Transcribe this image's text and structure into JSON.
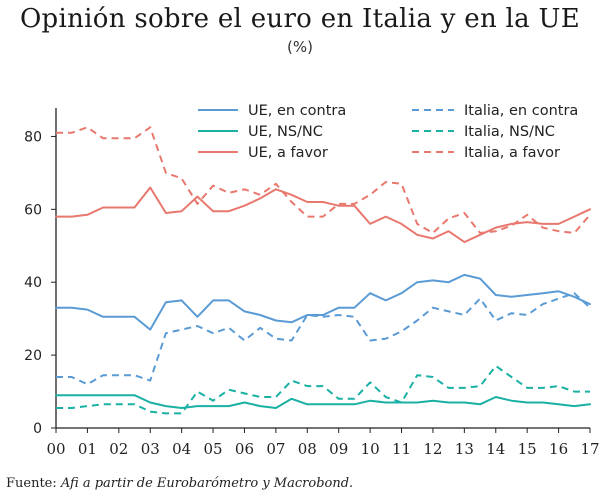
{
  "title": "Opinión sobre el euro en Italia y en la UE",
  "subtitle": "(%)",
  "source": {
    "prefix": "Fuente: ",
    "text": "Afi a partir de Eurobarómetro y Macrobond."
  },
  "chart_data": {
    "type": "line",
    "ylim": [
      0,
      90
    ],
    "yticks": [
      0,
      20,
      40,
      60,
      80
    ],
    "xlim": [
      0,
      17
    ],
    "xtick_labels": [
      "00",
      "01",
      "02",
      "03",
      "04",
      "05",
      "06",
      "07",
      "08",
      "09",
      "10",
      "11",
      "12",
      "13",
      "14",
      "15",
      "16",
      "17"
    ],
    "grid": false,
    "legend_placement": "top-right",
    "series": [
      {
        "name": "UE, en contra",
        "color": "#5b9bd5",
        "dash": "solid",
        "x": [
          0,
          0.5,
          1,
          1.5,
          2,
          2.5,
          3,
          3.5,
          4,
          4.5,
          5,
          5.5,
          6,
          6.5,
          7,
          7.5,
          8,
          8.5,
          9,
          9.5,
          10,
          10.5,
          11,
          11.5,
          12,
          12.5,
          13,
          13.5,
          14,
          14.5,
          15,
          15.5,
          16,
          16.5,
          17
        ],
        "y": [
          33,
          33,
          32.5,
          30.5,
          30.5,
          30.5,
          27,
          34.5,
          35,
          30.5,
          35,
          35,
          32,
          31,
          29.5,
          29,
          31,
          31,
          33,
          33,
          37,
          35,
          37,
          40,
          40.5,
          40,
          42,
          41,
          36.5,
          36,
          36.5,
          37,
          37.5,
          36,
          34
        ]
      },
      {
        "name": "UE, NS/NC",
        "color": "#1ab0a4",
        "dash": "solid",
        "x": [
          0,
          0.5,
          1,
          1.5,
          2,
          2.5,
          3,
          3.5,
          4,
          4.5,
          5,
          5.5,
          6,
          6.5,
          7,
          7.5,
          8,
          8.5,
          9,
          9.5,
          10,
          10.5,
          11,
          11.5,
          12,
          12.5,
          13,
          13.5,
          14,
          14.5,
          15,
          15.5,
          16,
          16.5,
          17
        ],
        "y": [
          9,
          9,
          9,
          9,
          9,
          9,
          7,
          6,
          5.5,
          6,
          6,
          6,
          7,
          6,
          5.5,
          8,
          6.5,
          6.5,
          6.5,
          6.5,
          7.5,
          7,
          7,
          7,
          7.5,
          7,
          7,
          6.5,
          8.5,
          7.5,
          7,
          7,
          6.5,
          6,
          6.5
        ]
      },
      {
        "name": "UE, a favor",
        "color": "#e8786e",
        "dash": "solid",
        "x": [
          0,
          0.5,
          1,
          1.5,
          2,
          2.5,
          3,
          3.5,
          4,
          4.5,
          5,
          5.5,
          6,
          6.5,
          7,
          7.5,
          8,
          8.5,
          9,
          9.5,
          10,
          10.5,
          11,
          11.5,
          12,
          12.5,
          13,
          13.5,
          14,
          14.5,
          15,
          15.5,
          16,
          16.5,
          17
        ],
        "y": [
          58,
          58,
          58.5,
          60.5,
          60.5,
          60.5,
          66,
          59,
          59.5,
          63.5,
          59.5,
          59.5,
          61,
          63,
          65.5,
          64,
          62,
          62,
          61,
          61,
          56,
          58,
          56,
          53,
          52,
          54,
          51,
          53,
          55,
          56,
          56.5,
          56,
          56,
          58,
          60
        ]
      },
      {
        "name": "Italia, en contra",
        "color": "#5b9bd5",
        "dash": "dashed",
        "x": [
          0,
          0.5,
          1,
          1.5,
          2,
          2.5,
          3,
          3.5,
          4,
          4.5,
          5,
          5.5,
          6,
          6.5,
          7,
          7.5,
          8,
          8.5,
          9,
          9.5,
          10,
          10.5,
          11,
          11.5,
          12,
          12.5,
          13,
          13.5,
          14,
          14.5,
          15,
          15.5,
          16,
          16.5,
          17
        ],
        "y": [
          14,
          14,
          12,
          14.5,
          14.5,
          14.5,
          13,
          26,
          27,
          28,
          26,
          27.5,
          24,
          27.5,
          24.5,
          24,
          31,
          30.5,
          31,
          30.5,
          24,
          24.5,
          26.5,
          29.5,
          33,
          32,
          31,
          35.5,
          29.5,
          31.5,
          31,
          34,
          35.5,
          37,
          33
        ]
      },
      {
        "name": "Italia, NS/NC",
        "color": "#1ab0a4",
        "dash": "dashed",
        "x": [
          0,
          0.5,
          1,
          1.5,
          2,
          2.5,
          3,
          3.5,
          4,
          4.5,
          5,
          5.5,
          6,
          6.5,
          7,
          7.5,
          8,
          8.5,
          9,
          9.5,
          10,
          10.5,
          11,
          11.5,
          12,
          12.5,
          13,
          13.5,
          14,
          14.5,
          15,
          15.5,
          16,
          16.5,
          17
        ],
        "y": [
          5.5,
          5.5,
          6,
          6.5,
          6.5,
          6.5,
          4.5,
          4,
          4,
          10,
          7.5,
          10.5,
          9.5,
          8.5,
          8.5,
          13,
          11.5,
          11.5,
          8,
          8,
          12.5,
          8.5,
          7,
          14.5,
          14,
          11,
          11,
          11.5,
          17,
          14,
          11,
          11,
          11.5,
          10,
          10
        ]
      },
      {
        "name": "Italia, a favor",
        "color": "#e8786e",
        "dash": "dashed",
        "x": [
          0,
          0.5,
          1,
          1.5,
          2,
          2.5,
          3,
          3.5,
          4,
          4.5,
          5,
          5.5,
          6,
          6.5,
          7,
          7.5,
          8,
          8.5,
          9,
          9.5,
          10,
          10.5,
          11,
          11.5,
          12,
          12.5,
          13,
          13.5,
          14,
          14.5,
          15,
          15.5,
          16,
          16.5,
          17
        ],
        "y": [
          81,
          81,
          82.5,
          79.5,
          79.5,
          79.5,
          82.5,
          70,
          68.5,
          61.5,
          66.5,
          64.5,
          65.5,
          64,
          67,
          62,
          58,
          58,
          61.5,
          61.5,
          64,
          67.5,
          67,
          56,
          53.5,
          57.5,
          59,
          53.5,
          54,
          55.5,
          58.5,
          55,
          54,
          53.5,
          58.5
        ]
      }
    ]
  }
}
